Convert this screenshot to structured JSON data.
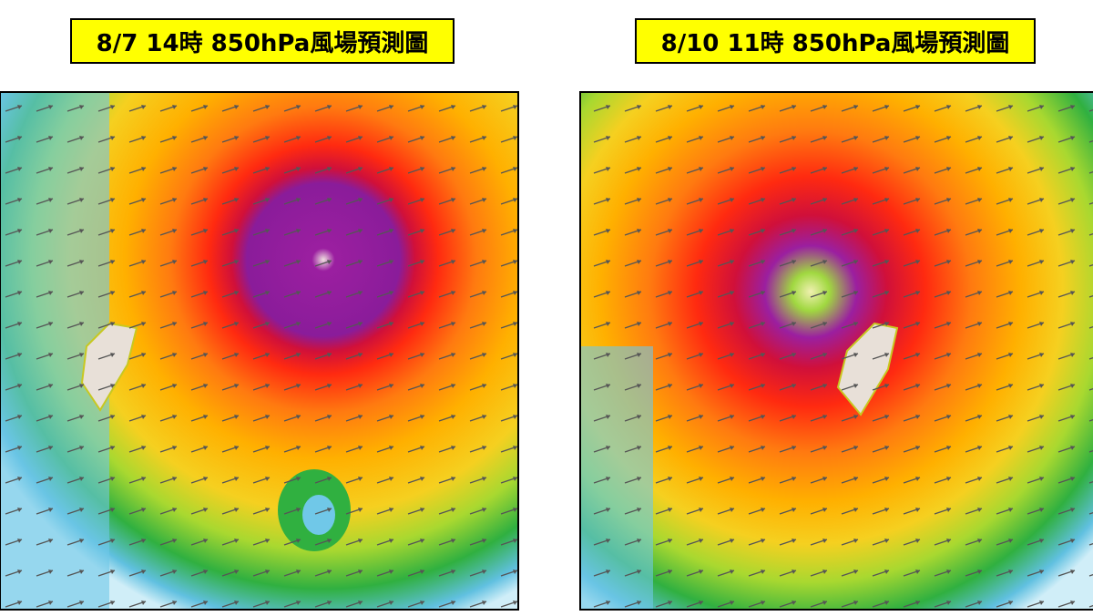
{
  "panels": [
    {
      "title": "8/7 14時 850hPa風場預測圖"
    },
    {
      "title": "8/10 11時 850hPa風場預測圖"
    }
  ]
}
